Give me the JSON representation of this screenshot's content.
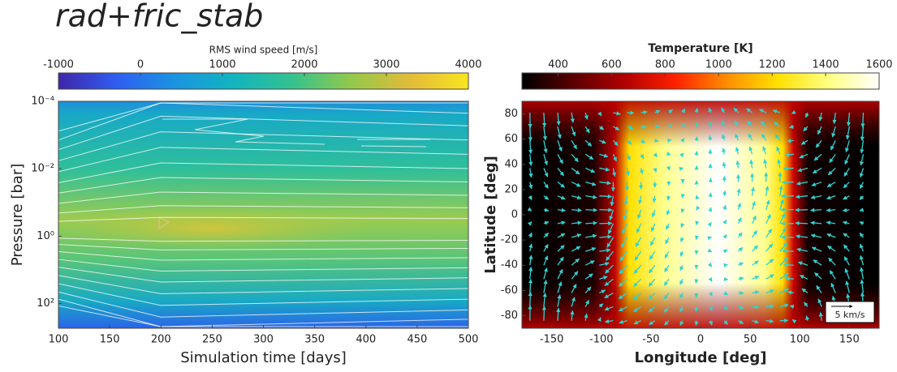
{
  "title": "rad+fric_stab",
  "chart_data": [
    {
      "type": "contour",
      "xlabel": "Simulation time [days]",
      "ylabel": "Pressure [bar]",
      "xlim": [
        100,
        500
      ],
      "xticks": [
        100,
        150,
        200,
        250,
        300,
        350,
        400,
        450,
        500
      ],
      "ylim": [
        0.0001,
        540
      ],
      "ylog": true,
      "yinvert": true,
      "yticks": [
        {
          "value": 0.0001,
          "label": "10⁻⁴"
        },
        {
          "value": 0.01,
          "label": "10⁻²"
        },
        {
          "value": 1,
          "label": "10⁰"
        },
        {
          "value": 100,
          "label": "10²"
        }
      ],
      "colorbar": {
        "label": "RMS wind speed [m/s]",
        "lim": [
          -1000,
          4000
        ],
        "ticks": [
          -1000,
          0,
          1000,
          2000,
          3000,
          4000
        ],
        "colors": [
          "#3e26a8",
          "#2f5ef1",
          "#1a95e0",
          "#12b5c0",
          "#35c28e",
          "#93c94b",
          "#e3bb3a",
          "#f9e51f"
        ]
      }
    },
    {
      "type": "map",
      "xlabel": "Longitude [deg]",
      "ylabel": "Latitude [deg]",
      "xlim": [
        -180,
        180
      ],
      "xticks": [
        -150,
        -100,
        -50,
        0,
        50,
        100,
        150
      ],
      "ylim": [
        -90,
        90
      ],
      "yticks": [
        -80,
        -60,
        -40,
        -20,
        0,
        20,
        40,
        60,
        80
      ],
      "colorbar": {
        "label": "Temperature [K]",
        "lim": [
          265,
          1600
        ],
        "ticks": [
          400,
          600,
          800,
          1000,
          1200,
          1400,
          1600
        ],
        "colors": [
          "#000000",
          "#5a0000",
          "#b00000",
          "#ff2000",
          "#ff8c00",
          "#ffe000",
          "#ffff80",
          "#ffffff"
        ]
      },
      "vector_key": "5 km/s"
    }
  ]
}
